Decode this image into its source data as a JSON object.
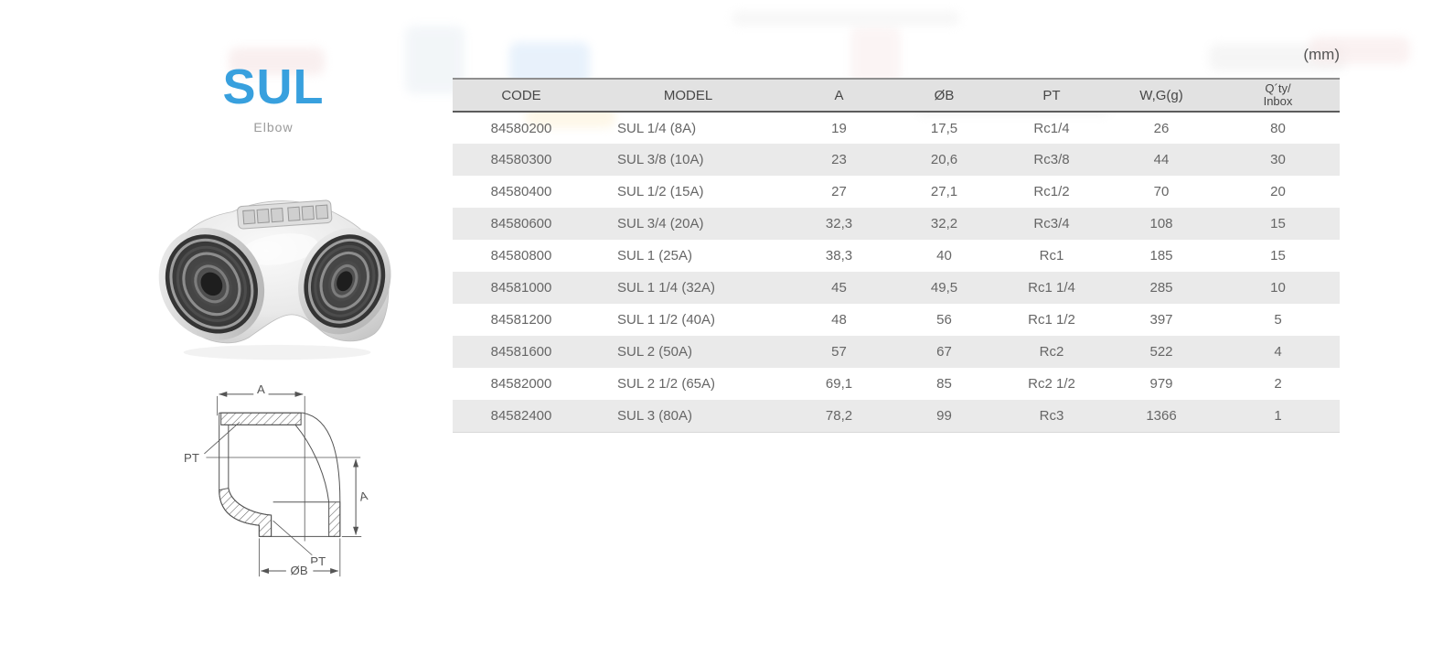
{
  "page": {
    "unit_label": "(mm)"
  },
  "product": {
    "title": "SUL",
    "subtitle": "Elbow"
  },
  "diagram": {
    "labels": {
      "dim_top": "A",
      "dim_right": "A",
      "thread_upper": "PT",
      "thread_lower": "PT",
      "bore_bottom": "ØB"
    }
  },
  "table": {
    "columns": [
      {
        "label": "CODE"
      },
      {
        "label": "MODEL"
      },
      {
        "label": "A"
      },
      {
        "label": "ØB"
      },
      {
        "label": "PT"
      },
      {
        "label": "W,G(g)"
      },
      {
        "label": "Q´ty/",
        "label_line2": "Inbox"
      }
    ],
    "rows": [
      [
        "84580200",
        "SUL 1/4 (8A)",
        "19",
        "17,5",
        "Rc1/4",
        "26",
        "80"
      ],
      [
        "84580300",
        "SUL 3/8 (10A)",
        "23",
        "20,6",
        "Rc3/8",
        "44",
        "30"
      ],
      [
        "84580400",
        "SUL 1/2 (15A)",
        "27",
        "27,1",
        "Rc1/2",
        "70",
        "20"
      ],
      [
        "84580600",
        "SUL 3/4 (20A)",
        "32,3",
        "32,2",
        "Rc3/4",
        "108",
        "15"
      ],
      [
        "84580800",
        "SUL 1 (25A)",
        "38,3",
        "40",
        "Rc1",
        "185",
        "15"
      ],
      [
        "84581000",
        "SUL 1 1/4 (32A)",
        "45",
        "49,5",
        "Rc1 1/4",
        "285",
        "10"
      ],
      [
        "84581200",
        "SUL 1 1/2 (40A)",
        "48",
        "56",
        "Rc1 1/2",
        "397",
        "5"
      ],
      [
        "84581600",
        "SUL 2 (50A)",
        "57",
        "67",
        "Rc2",
        "522",
        "4"
      ],
      [
        "84582000",
        "SUL 2 1/2 (65A)",
        "69,1",
        "85",
        "Rc2 1/2",
        "979",
        "2"
      ],
      [
        "84582400",
        "SUL 3 (80A)",
        "78,2",
        "99",
        "Rc3",
        "1366",
        "1"
      ]
    ]
  }
}
